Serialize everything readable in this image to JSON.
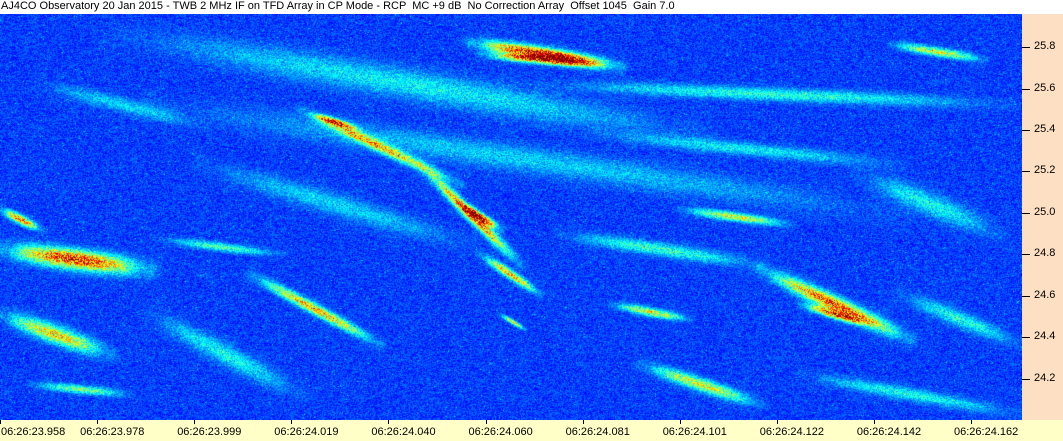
{
  "title": "AJ4CO Observatory 20 Jan 2015 - TWB 2 MHz IF on TFD Array in CP Mode - RCP  MC +9 dB  No Correction Array  Offset 1045  Gain 7.0",
  "chart_data": {
    "type": "heatmap",
    "title": "AJ4CO Observatory 20 Jan 2015 - TWB 2 MHz IF on TFD Array in CP Mode - RCP  MC +9 dB  No Correction Array  Offset 1045  Gain 7.0",
    "colormap": "jet",
    "x_tick_labels": [
      "06:26:23.958",
      "06:26:23.978",
      "06:26:23.999",
      "06:26:24.019",
      "06:26:24.040",
      "06:26:24.060",
      "06:26:24.081",
      "06:26:24.101",
      "06:26:24.122",
      "06:26:24.142",
      "06:26:24.162"
    ],
    "y_tick_labels": [
      "25.8",
      "25.6",
      "25.4",
      "25.2",
      "25.0",
      "24.8",
      "24.6",
      "24.4",
      "24.2"
    ],
    "y_ticks": [
      25.8,
      25.6,
      25.4,
      25.2,
      25.0,
      24.8,
      24.6,
      24.4,
      24.2
    ],
    "ylim": [
      24.0,
      25.96
    ],
    "y_axis_side": "right",
    "colors": {
      "axis_panel": "#fde0c4",
      "time_bar": "#ffffc8",
      "background_intensity": "#0b3aa8"
    }
  }
}
